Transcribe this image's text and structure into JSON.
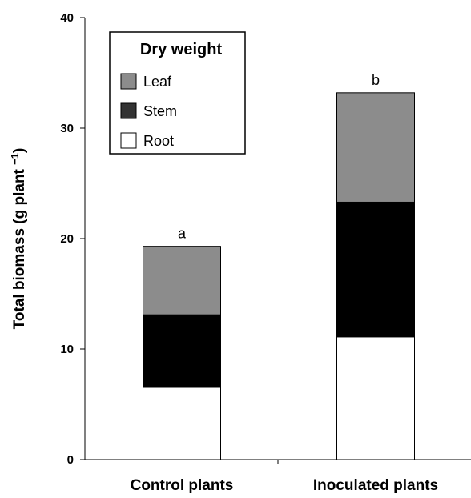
{
  "chart_data": {
    "type": "bar",
    "stacked": true,
    "categories": [
      "Control plants",
      "Inoculated plants"
    ],
    "series": [
      {
        "name": "Root",
        "values": [
          6.6,
          11.1
        ]
      },
      {
        "name": "Stem",
        "values": [
          6.5,
          12.2
        ]
      },
      {
        "name": "Leaf",
        "values": [
          6.2,
          9.9
        ]
      }
    ],
    "significance_labels": [
      "a",
      "b"
    ],
    "ylabel": "Total biomass (g plant",
    "ylabel_superscript": "−1",
    "ylabel_suffix": ")",
    "yticks": [
      "0",
      "10",
      "20",
      "30",
      "40"
    ],
    "ylim": [
      0,
      40
    ],
    "legend": {
      "title": "Dry weight",
      "position": "top-left",
      "items": [
        "Leaf",
        "Stem",
        "Root"
      ]
    },
    "colors": {
      "Root": "#ffffff",
      "Stem": "#000000",
      "Leaf": "#8c8c8c"
    },
    "grid": false
  }
}
